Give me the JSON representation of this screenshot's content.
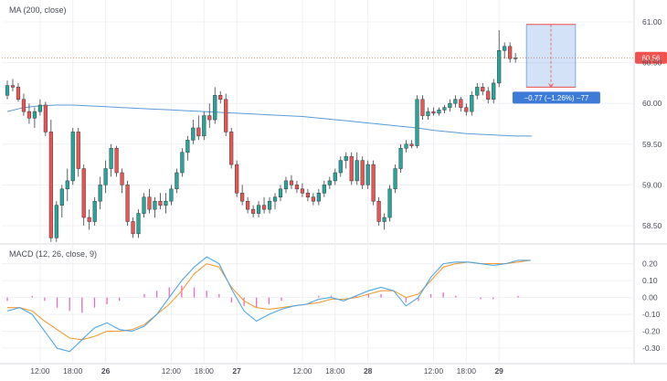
{
  "chart_data": [
    {
      "type": "candlestick",
      "title": "MA (200, close)",
      "ylim": [
        58.32,
        61.18
      ],
      "y_ticks": [
        "61.00",
        "60.50",
        "60.00",
        "59.50",
        "59.00",
        "58.50"
      ],
      "x_ticks": [
        "12:00",
        "18:00",
        "26",
        "12:00",
        "18:00",
        "27",
        "12:00",
        "18:00",
        "28",
        "12:00",
        "18:00",
        "29"
      ],
      "x_tick_hours": [
        12,
        18,
        24,
        36,
        42,
        48,
        60,
        66,
        72,
        84,
        90,
        96
      ],
      "x_start_hour": 6,
      "bar_hours": 1,
      "colors": {
        "up": "#26a69a",
        "down": "#ef5350",
        "ma": "#5b9bd5",
        "price_line": "#e8703a",
        "measure": "#3d7bd9"
      },
      "last_price": {
        "value": 60.56,
        "label": "60.56"
      },
      "measure": {
        "label": "−0.77 (−1.26%) −77",
        "from_price": 60.97,
        "to_price": 60.2
      },
      "candles": [
        [
          60.1,
          60.28,
          60.05,
          60.22
        ],
        [
          60.22,
          60.3,
          60.15,
          60.2
        ],
        [
          60.2,
          60.25,
          60.02,
          60.05
        ],
        [
          60.05,
          60.12,
          59.85,
          59.9
        ],
        [
          59.9,
          60.0,
          59.75,
          59.82
        ],
        [
          59.82,
          59.95,
          59.7,
          59.9
        ],
        [
          59.9,
          60.05,
          59.85,
          59.98
        ],
        [
          59.98,
          60.02,
          59.6,
          59.65
        ],
        [
          59.65,
          59.8,
          58.3,
          58.35
        ],
        [
          58.35,
          58.8,
          58.3,
          58.75
        ],
        [
          58.75,
          59.0,
          58.6,
          58.95
        ],
        [
          58.95,
          59.2,
          58.8,
          59.05
        ],
        [
          59.05,
          59.7,
          59.0,
          59.65
        ],
        [
          59.65,
          59.7,
          59.1,
          59.2
        ],
        [
          59.2,
          59.25,
          58.5,
          58.6
        ],
        [
          58.6,
          58.7,
          58.45,
          58.55
        ],
        [
          58.55,
          58.85,
          58.5,
          58.8
        ],
        [
          58.8,
          59.1,
          58.7,
          59.0
        ],
        [
          59.0,
          59.3,
          58.9,
          59.2
        ],
        [
          59.2,
          59.5,
          59.1,
          59.45
        ],
        [
          59.45,
          59.48,
          59.1,
          59.15
        ],
        [
          59.15,
          59.2,
          58.9,
          59.0
        ],
        [
          59.0,
          59.05,
          58.5,
          58.55
        ],
        [
          58.55,
          58.6,
          58.35,
          58.4
        ],
        [
          58.4,
          58.7,
          58.35,
          58.65
        ],
        [
          58.65,
          58.9,
          58.6,
          58.85
        ],
        [
          58.85,
          58.95,
          58.65,
          58.7
        ],
        [
          58.7,
          58.85,
          58.6,
          58.8
        ],
        [
          58.8,
          58.9,
          58.7,
          58.75
        ],
        [
          58.75,
          58.9,
          58.65,
          58.8
        ],
        [
          58.8,
          59.0,
          58.75,
          58.95
        ],
        [
          58.95,
          59.2,
          58.9,
          59.15
        ],
        [
          59.15,
          59.45,
          59.1,
          59.4
        ],
        [
          59.4,
          59.6,
          59.3,
          59.55
        ],
        [
          59.55,
          59.8,
          59.5,
          59.7
        ],
        [
          59.7,
          59.85,
          59.55,
          59.6
        ],
        [
          59.6,
          59.9,
          59.55,
          59.85
        ],
        [
          59.85,
          60.0,
          59.7,
          59.8
        ],
        [
          59.8,
          60.2,
          59.75,
          60.1
        ],
        [
          60.1,
          60.15,
          60.0,
          60.05
        ],
        [
          60.05,
          60.12,
          59.6,
          59.65
        ],
        [
          59.65,
          59.7,
          59.2,
          59.25
        ],
        [
          59.25,
          59.3,
          58.85,
          58.9
        ],
        [
          58.9,
          59.0,
          58.75,
          58.8
        ],
        [
          58.8,
          58.85,
          58.65,
          58.7
        ],
        [
          58.7,
          58.75,
          58.6,
          58.65
        ],
        [
          58.65,
          58.8,
          58.6,
          58.75
        ],
        [
          58.75,
          58.85,
          58.65,
          58.7
        ],
        [
          58.7,
          58.85,
          58.65,
          58.8
        ],
        [
          58.8,
          58.9,
          58.7,
          58.85
        ],
        [
          58.85,
          59.0,
          58.8,
          58.95
        ],
        [
          58.95,
          59.1,
          58.9,
          59.05
        ],
        [
          59.05,
          59.12,
          58.95,
          59.0
        ],
        [
          59.0,
          59.05,
          58.9,
          58.95
        ],
        [
          58.95,
          59.02,
          58.85,
          58.9
        ],
        [
          58.9,
          58.95,
          58.8,
          58.85
        ],
        [
          58.85,
          58.9,
          58.75,
          58.8
        ],
        [
          58.8,
          58.95,
          58.75,
          58.9
        ],
        [
          58.9,
          59.05,
          58.85,
          59.0
        ],
        [
          59.0,
          59.1,
          58.95,
          59.05
        ],
        [
          59.05,
          59.2,
          59.0,
          59.15
        ],
        [
          59.15,
          59.35,
          59.1,
          59.3
        ],
        [
          59.3,
          59.4,
          59.2,
          59.35
        ],
        [
          59.35,
          59.4,
          59.0,
          59.05
        ],
        [
          59.05,
          59.4,
          59.0,
          59.3
        ],
        [
          59.3,
          59.35,
          58.95,
          59.0
        ],
        [
          59.0,
          59.3,
          58.95,
          59.25
        ],
        [
          59.25,
          59.3,
          58.75,
          58.8
        ],
        [
          58.8,
          58.85,
          58.5,
          58.55
        ],
        [
          58.55,
          58.65,
          58.45,
          58.6
        ],
        [
          58.6,
          59.0,
          58.55,
          58.95
        ],
        [
          58.95,
          59.25,
          58.9,
          59.2
        ],
        [
          59.2,
          59.5,
          59.15,
          59.45
        ],
        [
          59.45,
          59.55,
          59.4,
          59.5
        ],
        [
          59.5,
          59.55,
          59.45,
          59.48
        ],
        [
          59.48,
          60.1,
          59.45,
          60.05
        ],
        [
          60.05,
          60.1,
          59.8,
          59.85
        ],
        [
          59.85,
          59.95,
          59.8,
          59.9
        ],
        [
          59.9,
          59.95,
          59.85,
          59.88
        ],
        [
          59.88,
          59.95,
          59.85,
          59.92
        ],
        [
          59.92,
          59.98,
          59.88,
          59.95
        ],
        [
          59.95,
          60.05,
          59.9,
          60.0
        ],
        [
          60.0,
          60.1,
          59.95,
          60.05
        ],
        [
          60.05,
          60.08,
          59.9,
          59.95
        ],
        [
          59.95,
          60.0,
          59.85,
          59.9
        ],
        [
          59.9,
          60.15,
          59.85,
          60.1
        ],
        [
          60.1,
          60.25,
          60.05,
          60.2
        ],
        [
          60.2,
          60.25,
          60.1,
          60.15
        ],
        [
          60.15,
          60.2,
          60.0,
          60.05
        ],
        [
          60.05,
          60.3,
          60.0,
          60.25
        ],
        [
          60.25,
          60.9,
          60.2,
          60.65
        ],
        [
          60.65,
          60.75,
          60.55,
          60.7
        ],
        [
          60.7,
          60.75,
          60.5,
          60.55
        ],
        [
          60.55,
          60.62,
          60.5,
          60.56
        ]
      ],
      "ma200": [
        59.9,
        59.95,
        59.97,
        59.98,
        59.98,
        59.97,
        59.96,
        59.95,
        59.94,
        59.93,
        59.92,
        59.91,
        59.9,
        59.89,
        59.88,
        59.87,
        59.86,
        59.85,
        59.84,
        59.82,
        59.8,
        59.78,
        59.76,
        59.74,
        59.72,
        59.7,
        59.67,
        59.65,
        59.63,
        59.62,
        59.61,
        59.6,
        59.6
      ]
    },
    {
      "type": "macd",
      "title": "MACD (12, 26, close, 9)",
      "ylim": [
        -0.37,
        0.29
      ],
      "y_ticks": [
        "0.20",
        "0.10",
        "0.00",
        "-0.10",
        "-0.20",
        "-0.30"
      ],
      "colors": {
        "macd": "#4da6e8",
        "signal": "#f29c38",
        "histogram": "#e86ac1"
      },
      "macd": [
        -0.08,
        -0.06,
        -0.1,
        -0.2,
        -0.3,
        -0.32,
        -0.25,
        -0.18,
        -0.15,
        -0.19,
        -0.2,
        -0.17,
        -0.1,
        0.0,
        0.1,
        0.18,
        0.24,
        0.2,
        0.05,
        -0.08,
        -0.14,
        -0.1,
        -0.07,
        -0.05,
        -0.04,
        -0.01,
        0.0,
        -0.02,
        0.01,
        0.04,
        0.06,
        0.04,
        -0.05,
        0.0,
        0.12,
        0.2,
        0.21,
        0.21,
        0.2,
        0.19,
        0.2,
        0.22,
        0.22
      ],
      "signal": [
        -0.06,
        -0.06,
        -0.08,
        -0.14,
        -0.19,
        -0.24,
        -0.25,
        -0.23,
        -0.2,
        -0.2,
        -0.19,
        -0.16,
        -0.1,
        -0.04,
        0.04,
        0.14,
        0.2,
        0.18,
        0.06,
        -0.02,
        -0.06,
        -0.07,
        -0.06,
        -0.05,
        -0.04,
        -0.03,
        -0.01,
        -0.01,
        0.0,
        0.02,
        0.04,
        0.04,
        0.0,
        0.02,
        0.1,
        0.18,
        0.2,
        0.21,
        0.2,
        0.2,
        0.2,
        0.21,
        0.22
      ],
      "histogram": [
        -0.02,
        0.0,
        0.01,
        -0.02,
        -0.06,
        -0.08,
        -0.09,
        -0.06,
        -0.04,
        -0.02,
        0.0,
        0.02,
        0.04,
        0.06,
        0.07,
        0.06,
        0.04,
        0.02,
        -0.03,
        -0.05,
        -0.06,
        -0.04,
        -0.02,
        0.0,
        0.0,
        0.01,
        0.01,
        0.0,
        0.01,
        0.02,
        0.02,
        0.0,
        -0.03,
        -0.02,
        0.02,
        0.03,
        0.01,
        0.0,
        -0.01,
        -0.01,
        0.0,
        0.01,
        0.0
      ]
    }
  ]
}
